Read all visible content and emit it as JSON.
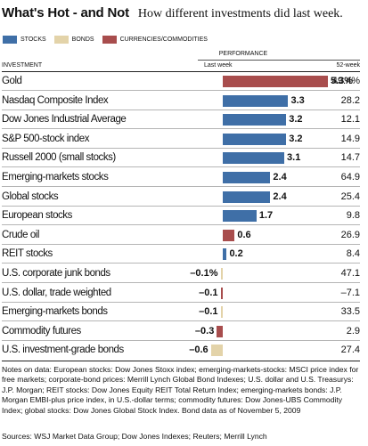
{
  "title": "What's Hot - and Not",
  "subtitle": "How different investments did last week.",
  "legend": [
    {
      "label": "STOCKS",
      "color": "#3f6fa7"
    },
    {
      "label": "BONDS",
      "color": "#e3d3a9"
    },
    {
      "label": "CURRENCIES/COMMODITIES",
      "color": "#a84d4d"
    }
  ],
  "header": {
    "performance": "PERFORMANCE",
    "investment": "INVESTMENT",
    "last_week": "Last week",
    "week52": "52-week"
  },
  "chart_data": {
    "type": "bar",
    "title": "What's Hot - and Not",
    "categories": [
      "Gold",
      "Nasdaq Composite Index",
      "Dow Jones Industrial Average",
      "S&P 500-stock index",
      "Russell 2000 (small stocks)",
      "Emerging-markets stocks",
      "Global stocks",
      "European stocks",
      "Crude oil",
      "REIT stocks",
      "U.S. corporate junk bonds",
      "U.S. dollar, trade weighted",
      "Emerging-markets bonds",
      "Commodity futures",
      "U.S. investment-grade bonds"
    ],
    "series": [
      {
        "name": "Last week",
        "values": [
          5.3,
          3.3,
          3.2,
          3.2,
          3.1,
          2.4,
          2.4,
          1.7,
          0.6,
          0.2,
          -0.1,
          -0.1,
          -0.1,
          -0.3,
          -0.6
        ],
        "labels": [
          "5.3%",
          "3.3",
          "3.2",
          "3.2",
          "3.1",
          "2.4",
          "2.4",
          "1.7",
          "0.6",
          "0.2",
          "–0.1%",
          "–0.1",
          "–0.1",
          "–0.3",
          "–0.6"
        ]
      },
      {
        "name": "52-week",
        "values": [
          49.4,
          28.2,
          12.1,
          14.9,
          14.7,
          64.9,
          25.4,
          9.8,
          26.9,
          8.4,
          47.1,
          -7.1,
          33.5,
          2.9,
          27.4
        ],
        "labels": [
          "49.4%",
          "28.2",
          "12.1",
          "14.9",
          "14.7",
          "64.9",
          "25.4",
          "9.8",
          "26.9",
          "8.4",
          "47.1",
          "–7.1",
          "33.5",
          "2.9",
          "27.4"
        ]
      }
    ],
    "asset_class": [
      "currencies",
      "stocks",
      "stocks",
      "stocks",
      "stocks",
      "stocks",
      "stocks",
      "stocks",
      "currencies",
      "stocks",
      "bonds",
      "currencies",
      "bonds",
      "currencies",
      "bonds"
    ],
    "colors": {
      "stocks": "#3f6fa7",
      "bonds": "#e3d3a9",
      "currencies": "#a84d4d"
    },
    "xlim": [
      -0.8,
      5.3
    ],
    "grid": false,
    "legend_placement": "top-left"
  },
  "notes": "Notes on data: European stocks: Dow Jones Stoxx index; emerging-markets-stocks: MSCI price index for free markets; corporate-bond prices: Merrill Lynch Global Bond Indexes; U.S. dollar and U.S. Treasurys: J.P. Morgan; REIT stocks: Dow Jones Equity REIT Total Return Index; emerging-markets bonds: J.P. Morgan EMBI-plus price index, in U.S.-dollar terms; commodity futures: Dow Jones-UBS Commodity Index; global stocks: Dow Jones Global Stock Index.  Bond data as of November 5, 2009",
  "sources": "Sources: WSJ Market Data Group; Dow Jones Indexes; Reuters; Merrill Lynch"
}
